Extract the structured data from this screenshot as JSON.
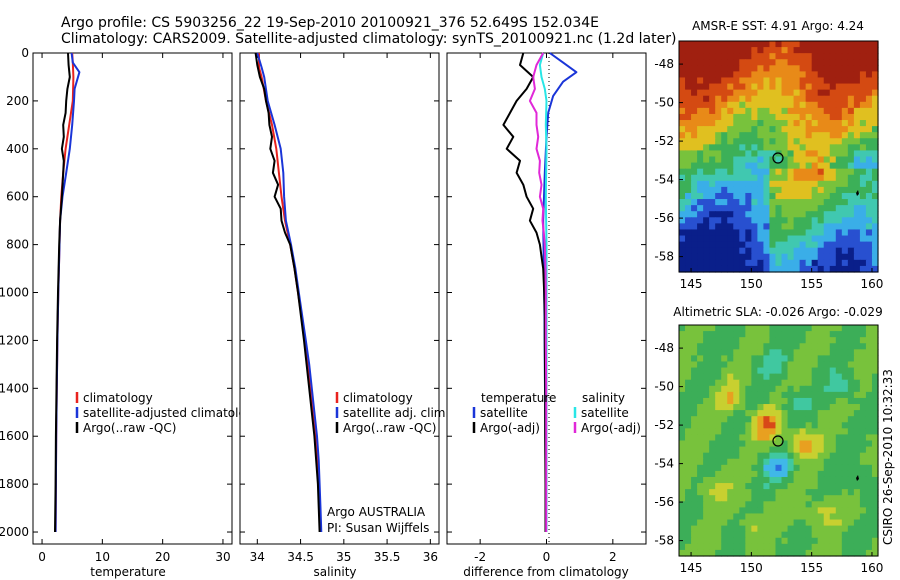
{
  "header": {
    "line1": "Argo profile: CS 5903256_22 19-Sep-2010 20100921_376 52.649S 152.034E",
    "line2": "Climatology: CARS2009. Satellite-adjusted climatology: synTS_20100921.nc (1.2d later)"
  },
  "footer": {
    "stamp": "CSIRO 26-Sep-2010 10:32:33",
    "agency": "Argo AUSTRALIA",
    "pi": "PI: Susan Wijffels"
  },
  "colors": {
    "climatology": "#e8231e",
    "satellite": "#1a35d8",
    "argo": "#000000",
    "sal_sat": "#28e6e6",
    "sal_argo": "#e028d8"
  },
  "chart_data": [
    {
      "type": "line",
      "title": "",
      "xlabel": "temperature",
      "ylabel": "",
      "xlim": [
        -1.5,
        31.5
      ],
      "ylim": [
        2050,
        0
      ],
      "xticks": [
        "0",
        "10",
        "20",
        "30"
      ],
      "yticks": [
        "0",
        "200",
        "400",
        "600",
        "800",
        "1000",
        "1200",
        "1400",
        "1600",
        "1800",
        "2000"
      ],
      "legend_position": "lower-right",
      "legend": [
        "climatology",
        "satellite-adjusted climatology",
        "Argo(..raw -QC)"
      ],
      "series": [
        {
          "name": "climatology",
          "color": "#e8231e",
          "depth": [
            0,
            40,
            100,
            200,
            300,
            400,
            500,
            600,
            700,
            800,
            900,
            1000,
            1200,
            1400,
            1600,
            1800,
            2000
          ],
          "values": [
            5.0,
            5.1,
            5.2,
            5.1,
            4.5,
            3.9,
            3.5,
            3.2,
            3.0,
            2.9,
            2.8,
            2.7,
            2.55,
            2.45,
            2.35,
            2.3,
            2.25
          ]
        },
        {
          "name": "satellite-adjusted climatology",
          "color": "#1a35d8",
          "depth": [
            0,
            40,
            80,
            150,
            200,
            300,
            400,
            500,
            600,
            700,
            800,
            900,
            1000,
            1200,
            1400,
            1600,
            1800,
            2000
          ],
          "values": [
            4.9,
            5.1,
            6.2,
            5.4,
            5.3,
            5.0,
            4.6,
            4.0,
            3.4,
            3.0,
            2.9,
            2.8,
            2.7,
            2.55,
            2.45,
            2.35,
            2.3,
            2.25
          ]
        },
        {
          "name": "Argo(..raw -QC)",
          "color": "#000000",
          "depth": [
            0,
            50,
            100,
            150,
            200,
            250,
            300,
            350,
            400,
            450,
            500,
            600,
            700,
            800,
            900,
            1000,
            1200,
            1400,
            1600,
            1800,
            2000
          ],
          "values": [
            4.3,
            4.4,
            4.6,
            4.2,
            4.0,
            3.9,
            3.5,
            3.6,
            3.3,
            3.6,
            3.5,
            3.3,
            3.0,
            2.85,
            2.75,
            2.65,
            2.5,
            2.4,
            2.3,
            2.25,
            2.15
          ]
        }
      ]
    },
    {
      "type": "line",
      "title": "",
      "xlabel": "salinity",
      "ylabel": "",
      "xlim": [
        33.8,
        36.1
      ],
      "ylim": [
        2050,
        0
      ],
      "xticks": [
        "34",
        "34.5",
        "35",
        "35.5",
        "36"
      ],
      "yticks": [],
      "legend_position": "lower-right",
      "legend": [
        "climatology",
        "satellite adj. clim.",
        "Argo(..raw -QC)"
      ],
      "series": [
        {
          "name": "climatology",
          "color": "#e8231e",
          "depth": [
            0,
            60,
            100,
            200,
            300,
            400,
            500,
            600,
            700,
            800,
            900,
            1000,
            1100,
            1200,
            1300,
            1400,
            1500,
            1600,
            1700,
            1800,
            1900,
            2000
          ],
          "values": [
            34.02,
            34.02,
            34.05,
            34.1,
            34.17,
            34.22,
            34.25,
            34.28,
            34.32,
            34.38,
            34.43,
            34.47,
            34.51,
            34.55,
            34.58,
            34.61,
            34.64,
            34.67,
            34.69,
            34.71,
            34.72,
            34.73
          ]
        },
        {
          "name": "satellite adj. clim.",
          "color": "#1a35d8",
          "depth": [
            0,
            60,
            100,
            200,
            300,
            400,
            500,
            600,
            700,
            800,
            900,
            1000,
            1100,
            1200,
            1300,
            1400,
            1500,
            1600,
            1700,
            1800,
            1900,
            2000
          ],
          "values": [
            34.0,
            34.05,
            34.08,
            34.12,
            34.2,
            34.27,
            34.3,
            34.31,
            34.33,
            34.39,
            34.44,
            34.48,
            34.52,
            34.56,
            34.6,
            34.63,
            34.66,
            34.69,
            34.71,
            34.72,
            34.73,
            34.74
          ]
        },
        {
          "name": "Argo(..raw -QC)",
          "color": "#000000",
          "depth": [
            0,
            50,
            100,
            150,
            200,
            250,
            300,
            350,
            400,
            450,
            500,
            550,
            600,
            650,
            700,
            750,
            800,
            900,
            1000,
            1200,
            1400,
            1600,
            1800,
            2000
          ],
          "values": [
            33.98,
            34.0,
            34.03,
            34.08,
            34.1,
            34.13,
            34.14,
            34.17,
            34.15,
            34.2,
            34.18,
            34.24,
            34.2,
            34.27,
            34.28,
            34.32,
            34.38,
            34.43,
            34.47,
            34.54,
            34.6,
            34.66,
            34.7,
            34.72
          ]
        }
      ]
    },
    {
      "type": "line",
      "title": "",
      "xlabel": "difference from climatology",
      "ylabel": "",
      "xlim": [
        -3.0,
        3.0
      ],
      "ylim": [
        2050,
        0
      ],
      "xticks": [
        "-2",
        "0",
        "2"
      ],
      "yticks": [],
      "legend_position": "lower-right",
      "legend": [
        "temperature",
        "satellite",
        "Argo(-adj)",
        "salinity",
        "satellite",
        "Argo(-adj)"
      ],
      "series": [
        {
          "name": "temperature satellite",
          "color": "#1a35d8",
          "depth": [
            0,
            40,
            80,
            120,
            180,
            250,
            350,
            500,
            700,
            900,
            1100,
            1300,
            1500,
            1700,
            1900,
            2000
          ],
          "values": [
            0.1,
            0.5,
            0.9,
            0.5,
            0.2,
            0.05,
            0.0,
            -0.05,
            -0.1,
            -0.08,
            -0.06,
            -0.05,
            -0.04,
            -0.03,
            -0.02,
            -0.02
          ]
        },
        {
          "name": "temperature Argo(-adj)",
          "color": "#000000",
          "depth": [
            0,
            50,
            100,
            150,
            200,
            250,
            300,
            350,
            400,
            450,
            500,
            550,
            600,
            650,
            700,
            750,
            800,
            850,
            900,
            1000,
            1100,
            1200,
            1400,
            1600,
            1800,
            2000
          ],
          "values": [
            -0.7,
            -0.8,
            -0.4,
            -0.6,
            -0.9,
            -1.1,
            -1.3,
            -1.0,
            -1.2,
            -0.8,
            -0.9,
            -0.7,
            -0.6,
            -0.4,
            -0.5,
            -0.3,
            -0.2,
            -0.15,
            -0.1,
            -0.07,
            -0.05,
            -0.05,
            -0.04,
            -0.04,
            -0.03,
            -0.03
          ]
        },
        {
          "name": "salinity satellite",
          "color": "#28e6e6",
          "depth": [
            0,
            50,
            100,
            150,
            200,
            300,
            400,
            600,
            800,
            1000,
            1200,
            1400,
            1600,
            1800,
            2000
          ],
          "values": [
            -0.1,
            -0.2,
            -0.15,
            -0.05,
            0.0,
            -0.02,
            0.0,
            -0.02,
            0.0,
            0.0,
            0.0,
            0.0,
            0.0,
            0.0,
            0.0
          ]
        },
        {
          "name": "salinity Argo(-adj)",
          "color": "#e028d8",
          "depth": [
            0,
            50,
            100,
            150,
            200,
            250,
            300,
            350,
            400,
            450,
            500,
            550,
            600,
            650,
            700,
            750,
            800,
            900,
            1000,
            1200,
            1400,
            1600,
            1800,
            2000
          ],
          "values": [
            -0.1,
            -0.3,
            -0.4,
            -0.35,
            -0.5,
            -0.3,
            -0.3,
            -0.25,
            -0.3,
            -0.2,
            -0.22,
            -0.15,
            -0.2,
            -0.1,
            -0.12,
            -0.08,
            -0.05,
            -0.03,
            -0.02,
            -0.02,
            -0.01,
            -0.01,
            -0.01,
            -0.01
          ]
        }
      ]
    },
    {
      "type": "heatmap",
      "title": "AMSR-E SST: 4.91  Argo: 4.24",
      "xlabel": "",
      "ylabel": "",
      "xlim": [
        144,
        160.5
      ],
      "ylim": [
        -58.8,
        -46.8
      ],
      "xticks": [
        "145",
        "150",
        "155",
        "160"
      ],
      "yticks": [
        "-48",
        "-50",
        "-52",
        "-54",
        "-56",
        "-58"
      ],
      "marker": {
        "lon": 152.0,
        "lat": -52.65
      },
      "colors": [
        "#0a1f8a",
        "#2850d0",
        "#3aaee8",
        "#40c8b0",
        "#3cb058",
        "#78c23c",
        "#e0c020",
        "#e88a18",
        "#d44a12",
        "#a02010"
      ]
    },
    {
      "type": "heatmap",
      "title": "Altimetric SLA: -0.026  Argo: -0.029",
      "xlabel": "",
      "ylabel": "",
      "xlim": [
        144,
        160.5
      ],
      "ylim": [
        -58.8,
        -46.8
      ],
      "xticks": [
        "145",
        "150",
        "155",
        "160"
      ],
      "yticks": [
        "-48",
        "-50",
        "-52",
        "-54",
        "-56",
        "-58"
      ],
      "marker": {
        "lon": 152.0,
        "lat": -52.65
      },
      "colors": [
        "#0a1f8a",
        "#2a6ee0",
        "#40b8e8",
        "#40c8a0",
        "#3cae58",
        "#78c23c",
        "#c8d030",
        "#e8a020",
        "#d84818",
        "#a01010"
      ]
    }
  ]
}
